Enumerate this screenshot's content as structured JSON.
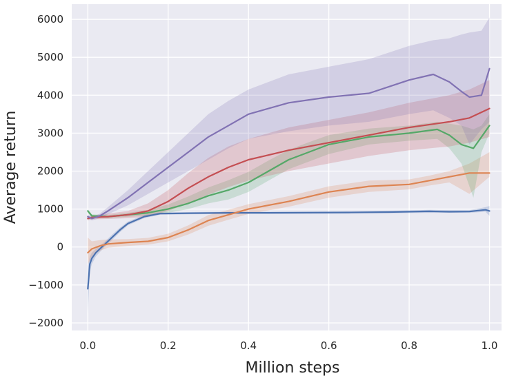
{
  "chart_data": {
    "type": "line",
    "title": "",
    "xlabel": "Million steps",
    "ylabel": "Average return",
    "xlim": [
      -0.04,
      1.03
    ],
    "ylim": [
      -2200,
      6400
    ],
    "xticks": [
      0.0,
      0.2,
      0.4,
      0.6,
      0.8,
      1.0
    ],
    "xtick_labels": [
      "0.0",
      "0.2",
      "0.4",
      "0.6",
      "0.8",
      "1.0"
    ],
    "yticks": [
      -2000,
      -1000,
      0,
      1000,
      2000,
      3000,
      4000,
      5000,
      6000
    ],
    "ytick_labels": [
      "−2000",
      "−1000",
      "0",
      "1000",
      "2000",
      "3000",
      "4000",
      "5000",
      "6000"
    ],
    "grid": true,
    "background": "#eaeaf2",
    "legend": "none",
    "series": [
      {
        "name": "blue",
        "color": "#4c72b0",
        "x": [
          0.0,
          0.005,
          0.01,
          0.02,
          0.04,
          0.06,
          0.08,
          0.1,
          0.14,
          0.18,
          0.25,
          0.35,
          0.45,
          0.55,
          0.65,
          0.75,
          0.85,
          0.9,
          0.95,
          0.99,
          1.0
        ],
        "y": [
          -1100,
          -450,
          -300,
          -150,
          50,
          250,
          450,
          620,
          800,
          880,
          890,
          900,
          900,
          905,
          910,
          920,
          940,
          930,
          935,
          980,
          950
        ],
        "lower": [
          -1750,
          -650,
          -450,
          -250,
          -20,
          180,
          390,
          570,
          760,
          850,
          860,
          870,
          870,
          875,
          880,
          890,
          900,
          900,
          900,
          930,
          820
        ],
        "upper": [
          -500,
          -250,
          -150,
          -50,
          120,
          320,
          510,
          670,
          840,
          910,
          920,
          930,
          930,
          935,
          940,
          950,
          980,
          970,
          970,
          1050,
          1080
        ]
      },
      {
        "name": "orange",
        "color": "#dd8452",
        "x": [
          0.0,
          0.01,
          0.03,
          0.05,
          0.1,
          0.15,
          0.2,
          0.25,
          0.3,
          0.35,
          0.4,
          0.5,
          0.6,
          0.7,
          0.8,
          0.85,
          0.9,
          0.95,
          1.0
        ],
        "y": [
          -150,
          -50,
          30,
          80,
          120,
          150,
          250,
          450,
          700,
          850,
          1000,
          1200,
          1450,
          1600,
          1650,
          1750,
          1850,
          1950,
          1950
        ],
        "lower": [
          -450,
          -250,
          -100,
          -20,
          30,
          60,
          150,
          330,
          560,
          720,
          870,
          1060,
          1300,
          1450,
          1520,
          1620,
          1700,
          1400,
          1850
        ],
        "upper": [
          250,
          150,
          180,
          200,
          210,
          240,
          350,
          570,
          840,
          980,
          1130,
          1340,
          1600,
          1750,
          1780,
          1880,
          2000,
          2200,
          2500
        ]
      },
      {
        "name": "green",
        "color": "#55a868",
        "x": [
          0.0,
          0.01,
          0.05,
          0.1,
          0.15,
          0.2,
          0.25,
          0.3,
          0.35,
          0.4,
          0.45,
          0.5,
          0.55,
          0.6,
          0.7,
          0.8,
          0.87,
          0.9,
          0.93,
          0.96,
          0.98,
          1.0
        ],
        "y": [
          950,
          820,
          800,
          850,
          900,
          1000,
          1150,
          1350,
          1500,
          1700,
          2000,
          2300,
          2500,
          2700,
          2900,
          3000,
          3100,
          2950,
          2700,
          2600,
          2900,
          3200
        ],
        "lower": [
          900,
          780,
          760,
          800,
          830,
          900,
          1000,
          1150,
          1250,
          1450,
          1750,
          2050,
          2250,
          2450,
          2700,
          2800,
          2850,
          2600,
          2200,
          1300,
          2500,
          3000
        ],
        "upper": [
          1000,
          860,
          840,
          900,
          980,
          1120,
          1330,
          1570,
          1760,
          1980,
          2280,
          2560,
          2760,
          2950,
          3120,
          3200,
          3300,
          3250,
          3200,
          3100,
          3200,
          3500
        ]
      },
      {
        "name": "red",
        "color": "#c44e52",
        "x": [
          0.0,
          0.01,
          0.05,
          0.1,
          0.15,
          0.2,
          0.25,
          0.3,
          0.35,
          0.4,
          0.5,
          0.6,
          0.7,
          0.8,
          0.9,
          0.95,
          1.0
        ],
        "y": [
          750,
          780,
          800,
          850,
          950,
          1200,
          1550,
          1850,
          2100,
          2300,
          2550,
          2750,
          2950,
          3150,
          3300,
          3400,
          3650
        ],
        "lower": [
          700,
          730,
          740,
          760,
          800,
          950,
          1150,
          1380,
          1580,
          1750,
          2000,
          2200,
          2400,
          2550,
          2650,
          2750,
          2900
        ],
        "upper": [
          800,
          830,
          880,
          950,
          1150,
          1500,
          1950,
          2350,
          2650,
          2850,
          3150,
          3350,
          3550,
          3800,
          4000,
          4150,
          4400
        ]
      },
      {
        "name": "purple",
        "color": "#8172b3",
        "x": [
          0.0,
          0.01,
          0.03,
          0.05,
          0.1,
          0.15,
          0.2,
          0.25,
          0.3,
          0.35,
          0.4,
          0.5,
          0.6,
          0.7,
          0.8,
          0.86,
          0.9,
          0.93,
          0.95,
          0.98,
          1.0
        ],
        "y": [
          800,
          750,
          820,
          950,
          1300,
          1700,
          2100,
          2500,
          2900,
          3200,
          3500,
          3800,
          3950,
          4050,
          4400,
          4550,
          4350,
          4100,
          3950,
          4000,
          4700
        ],
        "lower": [
          750,
          700,
          760,
          860,
          1100,
          1400,
          1700,
          2000,
          2300,
          2600,
          2850,
          3050,
          3200,
          3300,
          3500,
          3600,
          3400,
          3200,
          2700,
          3100,
          3300
        ],
        "upper": [
          850,
          800,
          880,
          1050,
          1500,
          2000,
          2500,
          3000,
          3500,
          3850,
          4150,
          4550,
          4750,
          4950,
          5300,
          5450,
          5500,
          5600,
          5650,
          5700,
          6050
        ]
      }
    ]
  }
}
